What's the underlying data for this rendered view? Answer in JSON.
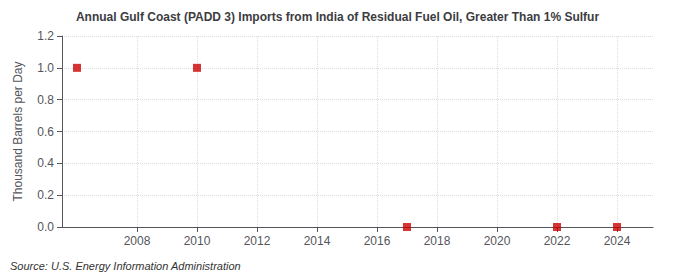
{
  "chart_data": {
    "type": "scatter",
    "title": "Annual Gulf Coast (PADD 3) Imports from India of Residual Fuel Oil, Greater Than 1% Sulfur",
    "ylabel": "Thousand Barrels per Day",
    "annotations": [
      "Source: U.S. Energy Information Administration"
    ],
    "x": [
      2006,
      2010,
      2017,
      2022,
      2024
    ],
    "values": [
      1.0,
      1.0,
      0.0,
      0.0,
      0.0
    ],
    "color": "#cc0000",
    "marker": "square",
    "xlim": [
      2005.5,
      2025.2
    ],
    "xticks": [
      2008,
      2010,
      2012,
      2014,
      2016,
      2018,
      2020,
      2022,
      2024
    ],
    "ylim": [
      0.0,
      1.2
    ],
    "yticks": [
      {
        "value": 0.0,
        "label": "0.0"
      },
      0.2,
      0.4,
      0.6,
      0.8,
      {
        "value": 1.0,
        "label": "1.0"
      },
      1.2
    ],
    "grid": true
  }
}
